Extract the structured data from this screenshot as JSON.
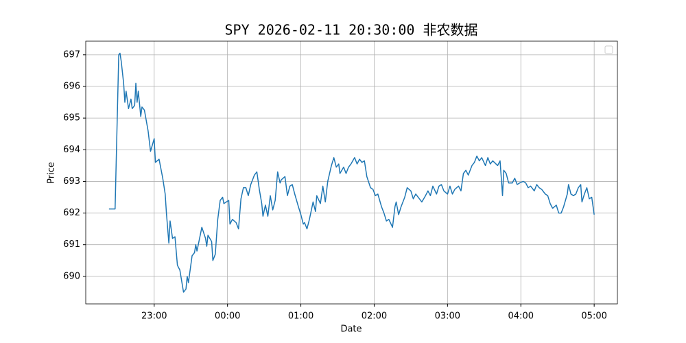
{
  "chart_data": {
    "type": "line",
    "title": "SPY 2026-02-11 20:30:00 非农数据",
    "x_label": "Date",
    "y_label": "Price",
    "color": "#1f77b4",
    "grid": true,
    "legend": "upper right",
    "xlim": [
      "22:04",
      "05:19"
    ],
    "xticks": [
      "23:00",
      "00:00",
      "01:00",
      "02:00",
      "03:00",
      "04:00",
      "05:00"
    ],
    "ylim": [
      689.13,
      697.43
    ],
    "yticks": [
      690,
      691,
      692,
      693,
      694,
      695,
      696,
      697
    ],
    "x": [
      "22:23",
      "22:28",
      "22:31",
      "22:32",
      "22:33",
      "22:35",
      "22:36",
      "22:37",
      "22:39",
      "22:41",
      "22:42",
      "22:44",
      "22:45",
      "22:46",
      "22:47",
      "22:49",
      "22:50",
      "22:52",
      "22:55",
      "22:57",
      "23:00",
      "23:01",
      "23:04",
      "23:07",
      "23:09",
      "23:10",
      "23:12",
      "23:13",
      "23:15",
      "23:17",
      "23:19",
      "23:21",
      "23:24",
      "23:26",
      "23:27",
      "23:28",
      "23:31",
      "23:33",
      "23:34",
      "23:35",
      "23:39",
      "23:42",
      "23:43",
      "23:44",
      "23:47",
      "23:48",
      "23:50",
      "23:52",
      "23:54",
      "23:56",
      "23:57",
      "00:01",
      "00:02",
      "00:04",
      "00:07",
      "00:09",
      "00:11",
      "00:13",
      "00:15",
      "00:17",
      "00:19",
      "00:22",
      "00:24",
      "00:26",
      "00:28",
      "00:29",
      "00:31",
      "00:33",
      "00:35",
      "00:37",
      "00:39",
      "00:41",
      "00:43",
      "00:44",
      "00:47",
      "00:49",
      "00:51",
      "00:53",
      "00:55",
      "00:58",
      "01:00",
      "01:02",
      "01:03",
      "01:05",
      "01:07",
      "01:10",
      "01:12",
      "01:13",
      "01:16",
      "01:18",
      "01:20",
      "01:22",
      "01:25",
      "01:27",
      "01:29",
      "01:31",
      "01:32",
      "01:35",
      "01:37",
      "01:39",
      "01:41",
      "01:44",
      "01:46",
      "01:48",
      "01:50",
      "01:52",
      "01:54",
      "01:57",
      "01:59",
      "02:01",
      "02:03",
      "02:06",
      "02:08",
      "02:10",
      "02:12",
      "02:15",
      "02:17",
      "02:18",
      "02:20",
      "02:22",
      "02:25",
      "02:27",
      "02:30",
      "02:32",
      "02:34",
      "02:37",
      "02:39",
      "02:42",
      "02:44",
      "02:46",
      "02:48",
      "02:51",
      "02:53",
      "02:55",
      "02:57",
      "03:00",
      "03:02",
      "03:04",
      "03:06",
      "03:09",
      "03:11",
      "03:13",
      "03:15",
      "03:17",
      "03:20",
      "03:22",
      "03:24",
      "03:26",
      "03:28",
      "03:31",
      "03:33",
      "03:35",
      "03:37",
      "03:41",
      "03:43",
      "03:45",
      "03:46",
      "03:48",
      "03:50",
      "03:53",
      "03:55",
      "03:57",
      "03:59",
      "04:02",
      "04:04",
      "04:06",
      "04:08",
      "04:11",
      "04:13",
      "04:15",
      "04:17",
      "04:20",
      "04:22",
      "04:24",
      "04:26",
      "04:29",
      "04:31",
      "04:33",
      "04:35",
      "04:38",
      "04:39",
      "04:41",
      "04:43",
      "04:45",
      "04:47",
      "04:49",
      "04:50",
      "04:52",
      "04:54",
      "04:56",
      "04:58",
      "05:00"
    ],
    "values": [
      692.13,
      692.13,
      697.0,
      697.05,
      696.8,
      696.1,
      695.5,
      695.85,
      695.3,
      695.6,
      695.3,
      695.4,
      696.1,
      695.5,
      695.85,
      695.05,
      695.35,
      695.25,
      694.6,
      693.95,
      694.35,
      693.6,
      693.7,
      693.1,
      692.6,
      692.0,
      691.05,
      691.75,
      691.2,
      691.25,
      690.35,
      690.2,
      689.5,
      689.6,
      690.0,
      689.8,
      690.65,
      690.75,
      691.0,
      690.8,
      691.55,
      691.2,
      690.95,
      691.3,
      691.1,
      690.5,
      690.7,
      691.8,
      692.4,
      692.5,
      692.3,
      692.4,
      691.65,
      691.8,
      691.7,
      691.5,
      692.45,
      692.8,
      692.8,
      692.55,
      692.9,
      693.2,
      693.3,
      692.75,
      692.3,
      691.9,
      692.25,
      691.9,
      692.55,
      692.1,
      692.4,
      693.3,
      692.95,
      693.05,
      693.15,
      692.55,
      692.85,
      692.9,
      692.6,
      692.2,
      691.95,
      691.65,
      691.7,
      691.5,
      691.8,
      692.35,
      692.05,
      692.55,
      692.3,
      692.85,
      692.35,
      693.0,
      693.5,
      693.75,
      693.45,
      693.55,
      693.25,
      693.45,
      693.25,
      693.45,
      693.55,
      693.75,
      693.55,
      693.7,
      693.6,
      693.65,
      693.15,
      692.8,
      692.75,
      692.55,
      692.6,
      692.2,
      692.0,
      691.75,
      691.8,
      691.55,
      692.2,
      692.35,
      691.95,
      692.2,
      692.5,
      692.8,
      692.7,
      692.45,
      692.6,
      692.45,
      692.35,
      692.55,
      692.7,
      692.55,
      692.85,
      692.6,
      692.85,
      692.9,
      692.7,
      692.6,
      692.85,
      692.6,
      692.75,
      692.85,
      692.7,
      693.25,
      693.35,
      693.2,
      693.5,
      693.6,
      693.8,
      693.65,
      693.75,
      693.5,
      693.75,
      693.55,
      693.65,
      693.5,
      693.65,
      692.55,
      693.35,
      693.25,
      692.95,
      692.95,
      693.1,
      692.9,
      692.95,
      693.0,
      692.95,
      692.8,
      692.85,
      692.7,
      692.9,
      692.8,
      692.75,
      692.6,
      692.55,
      692.3,
      692.15,
      692.25,
      692.0,
      692.0,
      692.2,
      692.6,
      692.9,
      692.6,
      692.55,
      692.6,
      692.8,
      692.9,
      692.35,
      692.6,
      692.8,
      692.45,
      692.5,
      691.95
    ]
  }
}
